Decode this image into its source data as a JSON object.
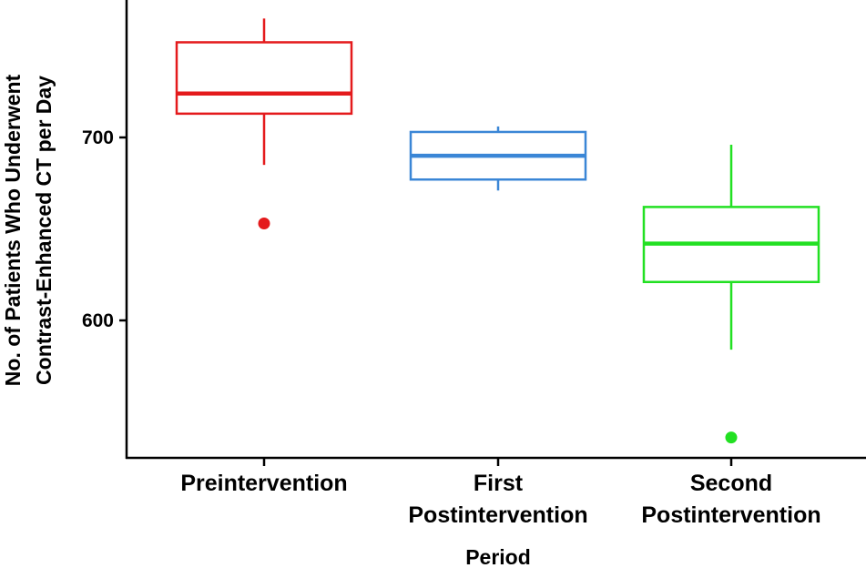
{
  "chart_data": {
    "type": "boxplot",
    "title": "",
    "xlabel": "Period",
    "ylabel_lines": [
      "No. of Patients Who Underwent",
      "Contrast-Enhanced CT per Day"
    ],
    "ylim": [
      525,
      775
    ],
    "y_ticks": [
      600,
      700
    ],
    "grid": false,
    "legend": "none",
    "categories": [
      {
        "label_lines": [
          "Preintervention"
        ]
      },
      {
        "label_lines": [
          "First",
          "Postintervention"
        ]
      },
      {
        "label_lines": [
          "Second",
          "Postintervention"
        ]
      }
    ],
    "boxes": [
      {
        "color": "#e41a1c",
        "whisker_low": 685,
        "q1": 713,
        "median": 724,
        "q3": 752,
        "whisker_high": 765,
        "outliers": [
          653
        ]
      },
      {
        "color": "#3a86d6",
        "whisker_low": 671,
        "q1": 677,
        "median": 690,
        "q3": 703,
        "whisker_high": 706,
        "outliers": []
      },
      {
        "color": "#22e022",
        "whisker_low": 584,
        "q1": 621,
        "median": 642,
        "q3": 662,
        "whisker_high": 696,
        "outliers": [
          536
        ]
      }
    ]
  }
}
